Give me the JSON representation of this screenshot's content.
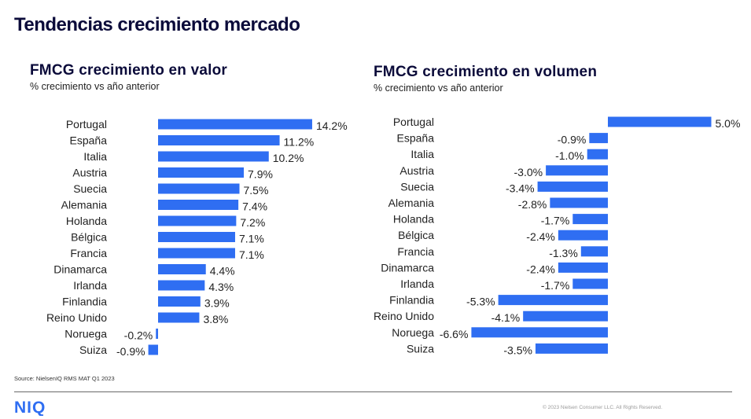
{
  "page": {
    "title": "Tendencias crecimiento mercado",
    "source": "Source: NielsenIQ RMS MAT Q1 2023",
    "logo_text": "NIQ",
    "copyright": "© 2023 Nielsen Consumer LLC. All Rights Reserved.",
    "colors": {
      "bar": "#2f6ef2",
      "title": "#0b0b3a"
    }
  },
  "chart_data": [
    {
      "type": "bar",
      "orientation": "horizontal",
      "title": "FMCG crecimiento en valor",
      "subtitle": "% crecimiento vs año anterior",
      "categories": [
        "Portugal",
        "España",
        "Italia",
        "Austria",
        "Suecia",
        "Alemania",
        "Holanda",
        "Bélgica",
        "Francia",
        "Dinamarca",
        "Irlanda",
        "Finlandia",
        "Reino Unido",
        "Noruega",
        "Suiza"
      ],
      "values": [
        14.2,
        11.2,
        10.2,
        7.9,
        7.5,
        7.4,
        7.2,
        7.1,
        7.1,
        4.4,
        4.3,
        3.9,
        3.8,
        -0.2,
        -0.9
      ],
      "value_labels": [
        "14.2%",
        "11.2%",
        "10.2%",
        "7.9%",
        "7.5%",
        "7.4%",
        "7.2%",
        "7.1%",
        "7.1%",
        "4.4%",
        "4.3%",
        "3.9%",
        "3.8%",
        "-0.2%",
        "-0.9%"
      ],
      "grid": false,
      "legend": "none"
    },
    {
      "type": "bar",
      "orientation": "horizontal",
      "title": "FMCG crecimiento en volumen",
      "subtitle": "% crecimiento vs año anterior",
      "categories": [
        "Portugal",
        "España",
        "Italia",
        "Austria",
        "Suecia",
        "Alemania",
        "Holanda",
        "Bélgica",
        "Francia",
        "Dinamarca",
        "Irlanda",
        "Finlandia",
        "Reino Unido",
        "Noruega",
        "Suiza"
      ],
      "values": [
        5.0,
        -0.9,
        -1.0,
        -3.0,
        -3.4,
        -2.8,
        -1.7,
        -2.4,
        -1.3,
        -2.4,
        -1.7,
        -5.3,
        -4.1,
        -6.6,
        -3.5
      ],
      "value_labels": [
        "5.0%",
        "-0.9%",
        "-1.0%",
        "-3.0%",
        "-3.4%",
        "-2.8%",
        "-1.7%",
        "-2.4%",
        "-1.3%",
        "-2.4%",
        "-1.7%",
        "-5.3%",
        "-4.1%",
        "-6.6%",
        "-3.5%"
      ],
      "grid": false,
      "legend": "none"
    }
  ]
}
